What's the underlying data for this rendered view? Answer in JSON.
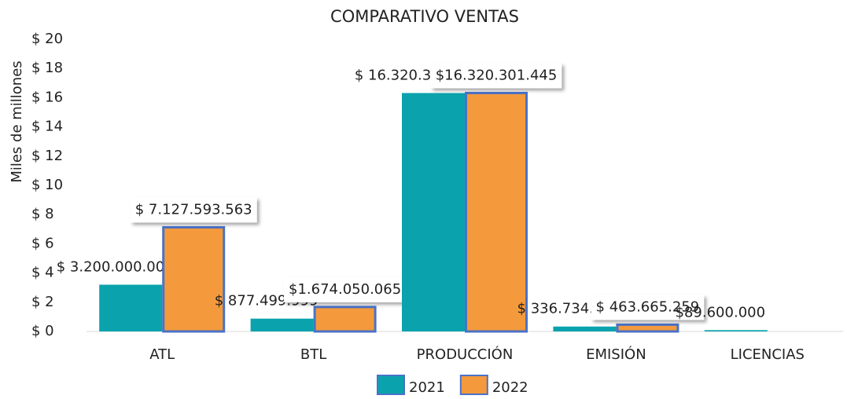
{
  "chart_data": {
    "type": "bar",
    "title": "COMPARATIVO VENTAS",
    "y_label": "Miles de millones",
    "categories": [
      "ATL",
      "BTL",
      "PRODUCCIÓN",
      "EMISIÓN",
      "LICENCIAS"
    ],
    "series": [
      {
        "name": "2021",
        "color": "#0aa3ad",
        "values": [
          3.2,
          0.877499999,
          16.320301445,
          0.336734614,
          0.0896
        ],
        "value_labels": [
          "$ 3.200.000.000",
          "$ 877.499.999",
          "$ 16.320.301.445",
          "$ 336.734.614",
          "$89.600.000"
        ]
      },
      {
        "name": "2022",
        "color": "#f49a3c",
        "values": [
          7.127593563,
          1.674050065,
          16.320301445,
          0.463665259,
          null
        ],
        "value_labels": [
          "$ 7.127.593.563",
          "$1.674.050.065",
          "$16.320.301.445",
          "$ 463.665.259",
          null
        ]
      }
    ],
    "ylim": [
      0,
      20
    ],
    "yticks": [
      {
        "value": 0,
        "label": "$ 0"
      },
      {
        "value": 2,
        "label": "$ 2"
      },
      {
        "value": 4,
        "label": "$ 4"
      },
      {
        "value": 6,
        "label": "$ 6"
      },
      {
        "value": 8,
        "label": "$ 8"
      },
      {
        "value": 10,
        "label": "$ 10"
      },
      {
        "value": 12,
        "label": "$ 12"
      },
      {
        "value": 14,
        "label": "$ 14"
      },
      {
        "value": 16,
        "label": "$ 16"
      },
      {
        "value": 18,
        "label": "$ 18"
      },
      {
        "value": 20,
        "label": "$ 20"
      }
    ],
    "legend": "bottom"
  }
}
